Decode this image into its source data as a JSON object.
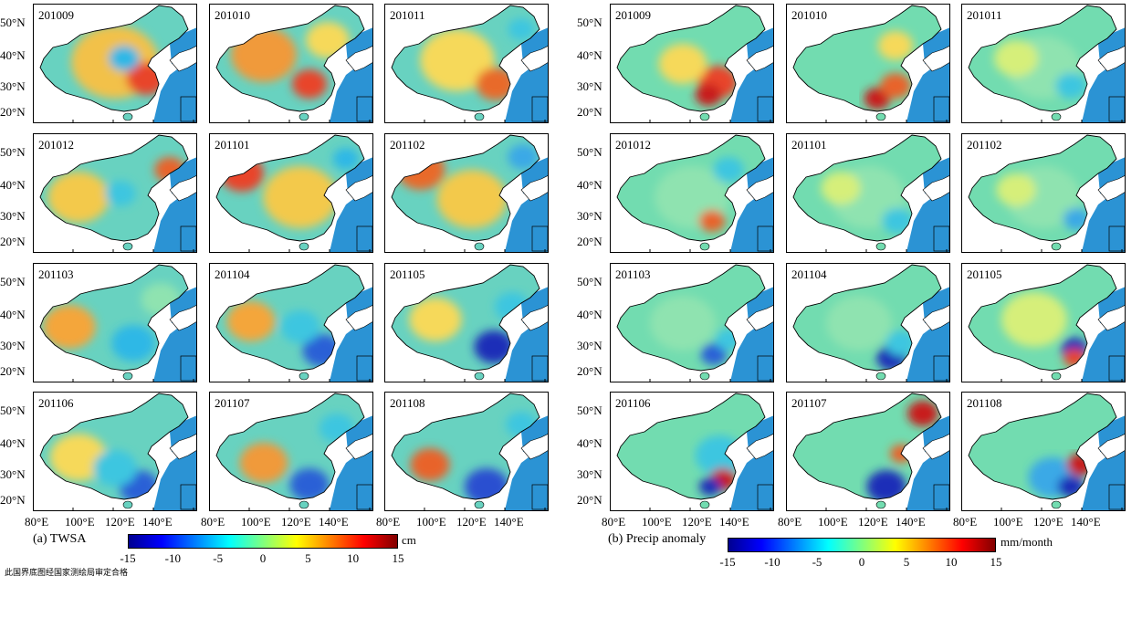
{
  "figure": {
    "panel_a": {
      "caption": "(a) TWSA",
      "months": [
        "201009",
        "201010",
        "201011",
        "201012",
        "201101",
        "201102",
        "201103",
        "201104",
        "201105",
        "201106",
        "201107",
        "201108"
      ],
      "colorbar": {
        "ticks": [
          "-15",
          "-10",
          "-5",
          "0",
          "5",
          "10",
          "15"
        ],
        "unit": "cm",
        "range": [
          -15,
          15
        ]
      },
      "lon_ticks": [
        "80°E",
        "100°E",
        "120°E",
        "140°E"
      ],
      "lat_ticks": [
        "50°N",
        "40°N",
        "30°N",
        "20°N"
      ]
    },
    "panel_b": {
      "caption": "(b) Precip anomaly",
      "months": [
        "201009",
        "201010",
        "201011",
        "201012",
        "201101",
        "201102",
        "201103",
        "201104",
        "201105",
        "201106",
        "201107",
        "201108"
      ],
      "colorbar": {
        "ticks": [
          "-15",
          "-10",
          "-5",
          "0",
          "5",
          "10",
          "15"
        ],
        "unit": "mm/month",
        "range": [
          -15,
          15
        ]
      },
      "lon_ticks": [
        "80°E",
        "100°E",
        "120°E",
        "140°E"
      ],
      "lat_ticks": [
        "50°N",
        "40°N",
        "30°N",
        "20°N"
      ]
    },
    "footnote": "此国界底图经国家测绘局审定合格",
    "colors": {
      "ocean": "#2b93d4",
      "land_base": "#5fc8b8",
      "border": "#000000"
    }
  }
}
